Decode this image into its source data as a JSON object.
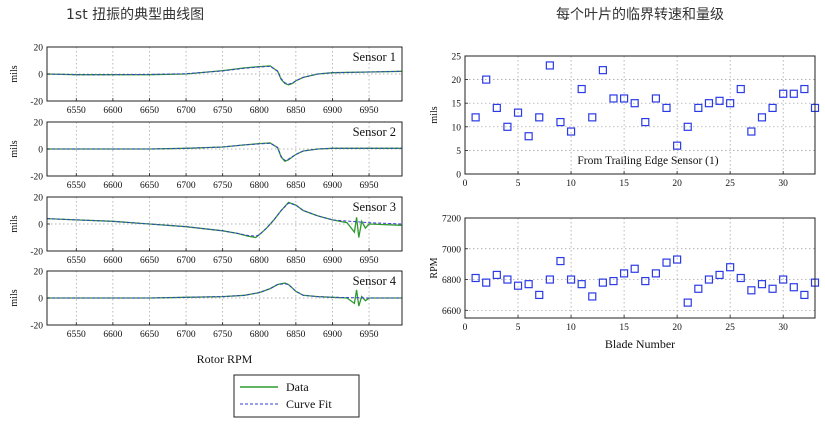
{
  "titles": {
    "left": "1st 扭振的典型曲线图",
    "right": "每个叶片的临界转速和量级"
  },
  "colors": {
    "data_line": "#2e9a2e",
    "fit_line": "#3a3ad8",
    "marker": "#2a3ae6",
    "grid": "#9a9a9a",
    "axis": "#222222"
  },
  "chart_data": [
    {
      "id": "sensor1",
      "type": "line",
      "annotation": "Sensor 1",
      "ylabel": "mils",
      "xlim": [
        6510,
        6995
      ],
      "ylim": [
        -20,
        20
      ],
      "xticks": [
        6550,
        6600,
        6650,
        6700,
        6750,
        6800,
        6850,
        6900,
        6950
      ],
      "yticks": [
        -20,
        0,
        20
      ],
      "grid": true,
      "series": [
        {
          "name": "Data",
          "x": [
            6510,
            6550,
            6600,
            6650,
            6700,
            6750,
            6780,
            6800,
            6815,
            6825,
            6830,
            6835,
            6840,
            6845,
            6850,
            6860,
            6880,
            6900,
            6950,
            6995
          ],
          "y": [
            0,
            -0.5,
            -0.5,
            -0.5,
            0,
            2.5,
            4.5,
            5.5,
            6,
            2,
            -4,
            -7,
            -8,
            -7,
            -5,
            -2.5,
            0,
            1,
            1.5,
            2
          ]
        },
        {
          "name": "Curve Fit",
          "x": [
            6510,
            6550,
            6600,
            6650,
            6700,
            6750,
            6780,
            6800,
            6815,
            6825,
            6830,
            6835,
            6840,
            6845,
            6850,
            6860,
            6880,
            6900,
            6950,
            6995
          ],
          "y": [
            0,
            -0.5,
            -0.5,
            -0.3,
            0.2,
            2.3,
            4.2,
            5.2,
            5.6,
            2.2,
            -3.5,
            -6.5,
            -7.5,
            -6.8,
            -5,
            -2.5,
            0,
            1,
            1.5,
            2
          ]
        }
      ]
    },
    {
      "id": "sensor2",
      "type": "line",
      "annotation": "Sensor 2",
      "ylabel": "mils",
      "xlim": [
        6510,
        6995
      ],
      "ylim": [
        -20,
        20
      ],
      "xticks": [
        6550,
        6600,
        6650,
        6700,
        6750,
        6800,
        6850,
        6900,
        6950
      ],
      "yticks": [
        -20,
        0,
        20
      ],
      "grid": true,
      "series": [
        {
          "name": "Data",
          "x": [
            6510,
            6550,
            6600,
            6650,
            6700,
            6750,
            6780,
            6800,
            6815,
            6825,
            6830,
            6835,
            6840,
            6850,
            6860,
            6880,
            6900,
            6950,
            6995
          ],
          "y": [
            0,
            0,
            0,
            0,
            0.5,
            1.5,
            3,
            4,
            4.5,
            1,
            -6,
            -9,
            -8,
            -4,
            -1.5,
            0,
            0.5,
            0.5,
            0.5
          ]
        },
        {
          "name": "Curve Fit",
          "x": [
            6510,
            6550,
            6600,
            6650,
            6700,
            6750,
            6780,
            6800,
            6815,
            6825,
            6830,
            6835,
            6840,
            6850,
            6860,
            6880,
            6900,
            6950,
            6995
          ],
          "y": [
            0,
            0,
            0,
            0,
            0.5,
            1.5,
            3,
            3.8,
            4.2,
            1.2,
            -5.5,
            -8.5,
            -7.5,
            -4,
            -1.5,
            0,
            0.5,
            0.5,
            0.5
          ]
        }
      ]
    },
    {
      "id": "sensor3",
      "type": "line",
      "annotation": "Sensor 3",
      "ylabel": "mils",
      "xlim": [
        6510,
        6995
      ],
      "ylim": [
        -20,
        20
      ],
      "xticks": [
        6550,
        6600,
        6650,
        6700,
        6750,
        6800,
        6850,
        6900,
        6950
      ],
      "yticks": [
        -20,
        0,
        20
      ],
      "grid": true,
      "series": [
        {
          "name": "Data",
          "x": [
            6510,
            6550,
            6600,
            6650,
            6700,
            6750,
            6770,
            6785,
            6795,
            6800,
            6810,
            6820,
            6830,
            6840,
            6850,
            6860,
            6880,
            6900,
            6920,
            6930,
            6933,
            6936,
            6940,
            6945,
            6950,
            6995
          ],
          "y": [
            4,
            3,
            2,
            0,
            -2,
            -5,
            -7,
            -9,
            -10,
            -8,
            -3,
            3,
            10,
            16,
            14,
            10,
            6,
            3,
            1,
            -6,
            5,
            -10,
            2,
            -3,
            0,
            -1
          ]
        },
        {
          "name": "Curve Fit",
          "x": [
            6510,
            6550,
            6600,
            6650,
            6700,
            6750,
            6770,
            6785,
            6795,
            6800,
            6810,
            6820,
            6830,
            6840,
            6850,
            6860,
            6880,
            6900,
            6950,
            6995
          ],
          "y": [
            4,
            3,
            2,
            0,
            -2,
            -5,
            -7,
            -8.5,
            -9,
            -8,
            -3,
            3,
            10,
            15.5,
            14,
            10,
            6,
            3,
            1,
            0
          ]
        }
      ]
    },
    {
      "id": "sensor4",
      "type": "line",
      "annotation": "Sensor 4",
      "ylabel": "mils",
      "xlabel": "Rotor RPM",
      "xlim": [
        6510,
        6995
      ],
      "ylim": [
        -20,
        20
      ],
      "xticks": [
        6550,
        6600,
        6650,
        6700,
        6750,
        6800,
        6850,
        6900,
        6950
      ],
      "yticks": [
        -20,
        0,
        20
      ],
      "grid": true,
      "series": [
        {
          "name": "Data",
          "x": [
            6510,
            6550,
            6600,
            6650,
            6700,
            6750,
            6780,
            6800,
            6815,
            6825,
            6835,
            6840,
            6850,
            6860,
            6880,
            6900,
            6920,
            6930,
            6933,
            6936,
            6940,
            6945,
            6950,
            6995
          ],
          "y": [
            0,
            0,
            0,
            0,
            0.5,
            1,
            2,
            4,
            7,
            10,
            11,
            10,
            5,
            2,
            1,
            0.5,
            0,
            -4,
            6,
            -6,
            1,
            -2,
            0,
            0
          ]
        },
        {
          "name": "Curve Fit",
          "x": [
            6510,
            6550,
            6600,
            6650,
            6700,
            6750,
            6780,
            6800,
            6815,
            6825,
            6835,
            6840,
            6850,
            6860,
            6880,
            6900,
            6950,
            6995
          ],
          "y": [
            0,
            0,
            0,
            0,
            0.5,
            1,
            2,
            4,
            7,
            10,
            10.5,
            10,
            5,
            2,
            1,
            0.5,
            0,
            0
          ]
        }
      ]
    },
    {
      "id": "mils-per-blade",
      "type": "scatter",
      "ylabel": "mils",
      "annotation": "From Trailing Edge Sensor (1)",
      "xlim": [
        0,
        33
      ],
      "ylim": [
        0,
        25
      ],
      "xticks": [
        0,
        5,
        10,
        15,
        20,
        25,
        30
      ],
      "yticks": [
        0,
        5,
        10,
        15,
        20,
        25
      ],
      "grid": true,
      "x": [
        1,
        2,
        3,
        4,
        5,
        6,
        7,
        8,
        9,
        10,
        11,
        12,
        13,
        14,
        15,
        16,
        17,
        18,
        19,
        20,
        21,
        22,
        23,
        24,
        25,
        26,
        27,
        28,
        29,
        30,
        31,
        32,
        33
      ],
      "y": [
        12,
        20,
        14,
        10,
        13,
        8,
        12,
        23,
        11,
        9,
        18,
        12,
        22,
        16,
        16,
        15,
        11,
        16,
        14,
        6,
        10,
        14,
        15,
        15.5,
        15,
        18,
        9,
        12,
        14,
        17,
        17,
        18,
        14
      ]
    },
    {
      "id": "rpm-per-blade",
      "type": "scatter",
      "ylabel": "RPM",
      "xlabel": "Blade Number",
      "xlim": [
        0,
        33
      ],
      "ylim": [
        6550,
        7200
      ],
      "xticks": [
        0,
        5,
        10,
        15,
        20,
        25,
        30
      ],
      "yticks": [
        6600,
        6800,
        7000,
        7200
      ],
      "grid": true,
      "x": [
        1,
        2,
        3,
        4,
        5,
        6,
        7,
        8,
        9,
        10,
        11,
        12,
        13,
        14,
        15,
        16,
        17,
        18,
        19,
        20,
        21,
        22,
        23,
        24,
        25,
        26,
        27,
        28,
        29,
        30,
        31,
        32,
        33
      ],
      "y": [
        6810,
        6780,
        6830,
        6800,
        6760,
        6770,
        6700,
        6800,
        6920,
        6800,
        6770,
        6690,
        6780,
        6790,
        6840,
        6870,
        6790,
        6840,
        6910,
        6930,
        6650,
        6740,
        6800,
        6830,
        6880,
        6810,
        6730,
        6770,
        6740,
        6800,
        6750,
        6700,
        6780
      ]
    }
  ],
  "legend": {
    "items": [
      {
        "label": "Data",
        "style": "solid",
        "color": "#2e9a2e"
      },
      {
        "label": "Curve Fit",
        "style": "dashed",
        "color": "#3a3ad8"
      }
    ]
  }
}
